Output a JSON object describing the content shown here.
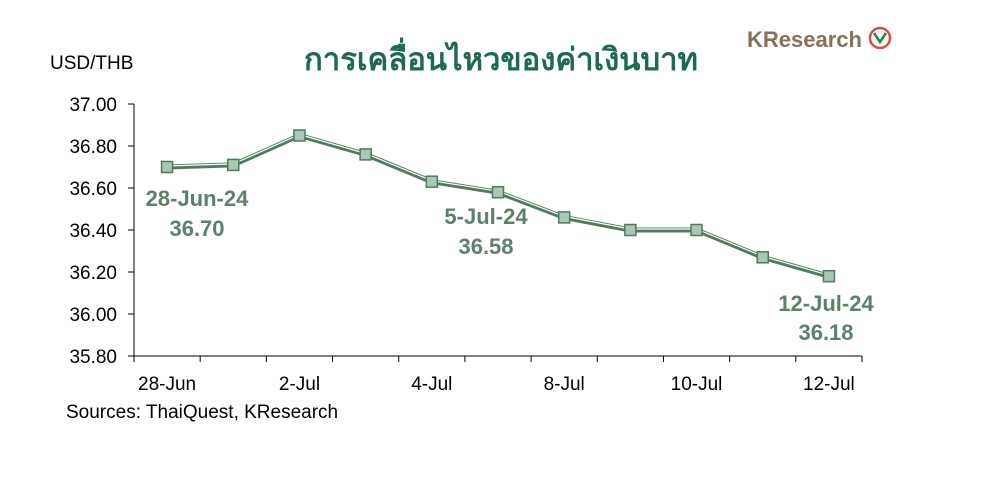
{
  "title": "การเคลื่อนไหวของค่าเงินบาท",
  "brand": {
    "text": "KResearch"
  },
  "source": "Sources: ThaiQuest, KResearch",
  "colors": {
    "line": "#4f7b5f",
    "marker_fill": "#a8c8b4",
    "marker_stroke": "#4f7b5f",
    "annotation": "#5a8268",
    "title": "#1d6a4d",
    "brand_logo": "#d9473f"
  },
  "chart_data": {
    "type": "line",
    "ylabel": "USD/THB",
    "xlabel": "",
    "ylim": [
      35.8,
      37.0
    ],
    "yticks": [
      "35.80",
      "36.00",
      "36.20",
      "36.40",
      "36.60",
      "36.80",
      "37.00"
    ],
    "x_tick_labels": [
      "28-Jun",
      "2-Jul",
      "4-Jul",
      "8-Jul",
      "10-Jul",
      "12-Jul"
    ],
    "x": [
      "28-Jun",
      "1-Jul",
      "2-Jul",
      "3-Jul",
      "4-Jul",
      "5-Jul",
      "8-Jul",
      "9-Jul",
      "10-Jul",
      "11-Jul",
      "12-Jul"
    ],
    "values": [
      36.7,
      36.71,
      36.85,
      36.76,
      36.63,
      36.58,
      36.46,
      36.4,
      36.4,
      36.27,
      36.18
    ],
    "annotations": [
      {
        "date": "28-Jun-24",
        "value": "36.70"
      },
      {
        "date": "5-Jul-24",
        "value": "36.58"
      },
      {
        "date": "12-Jul-24",
        "value": "36.18"
      }
    ],
    "grid": false
  }
}
